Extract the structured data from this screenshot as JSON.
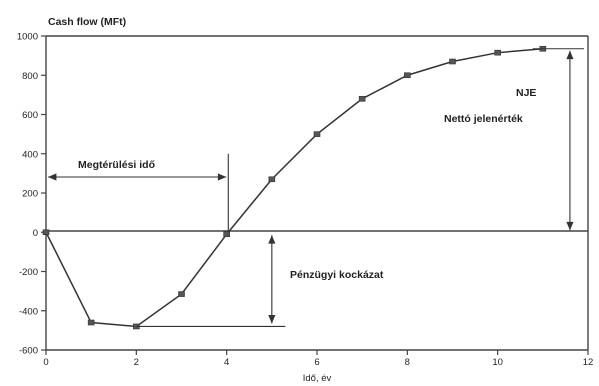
{
  "chart_data": {
    "type": "line",
    "title": "Cash flow (MFt)",
    "xlabel": "Idő, év",
    "ylabel": "",
    "xlim": [
      0,
      12
    ],
    "ylim": [
      -600,
      1000
    ],
    "x_ticks": [
      "0",
      "2",
      "4",
      "6",
      "8",
      "10",
      "12"
    ],
    "y_ticks": [
      "1000",
      "800",
      "600",
      "400",
      "200",
      "0",
      "-200",
      "-400",
      "-600"
    ],
    "series": [
      {
        "x": [
          0,
          1,
          2,
          3,
          4,
          5,
          6,
          7,
          8,
          9,
          10,
          11
        ],
        "y": [
          0,
          -460,
          -480,
          -315,
          -10,
          270,
          500,
          680,
          800,
          870,
          915,
          935
        ]
      }
    ],
    "annotations": {
      "payback_label": "Megtérülési idő",
      "npv_abbr": "NJE",
      "npv_label": "Nettó jelenérték",
      "risk_label": "Pénzügyi kockázat"
    },
    "grid": false,
    "legend": "none"
  }
}
